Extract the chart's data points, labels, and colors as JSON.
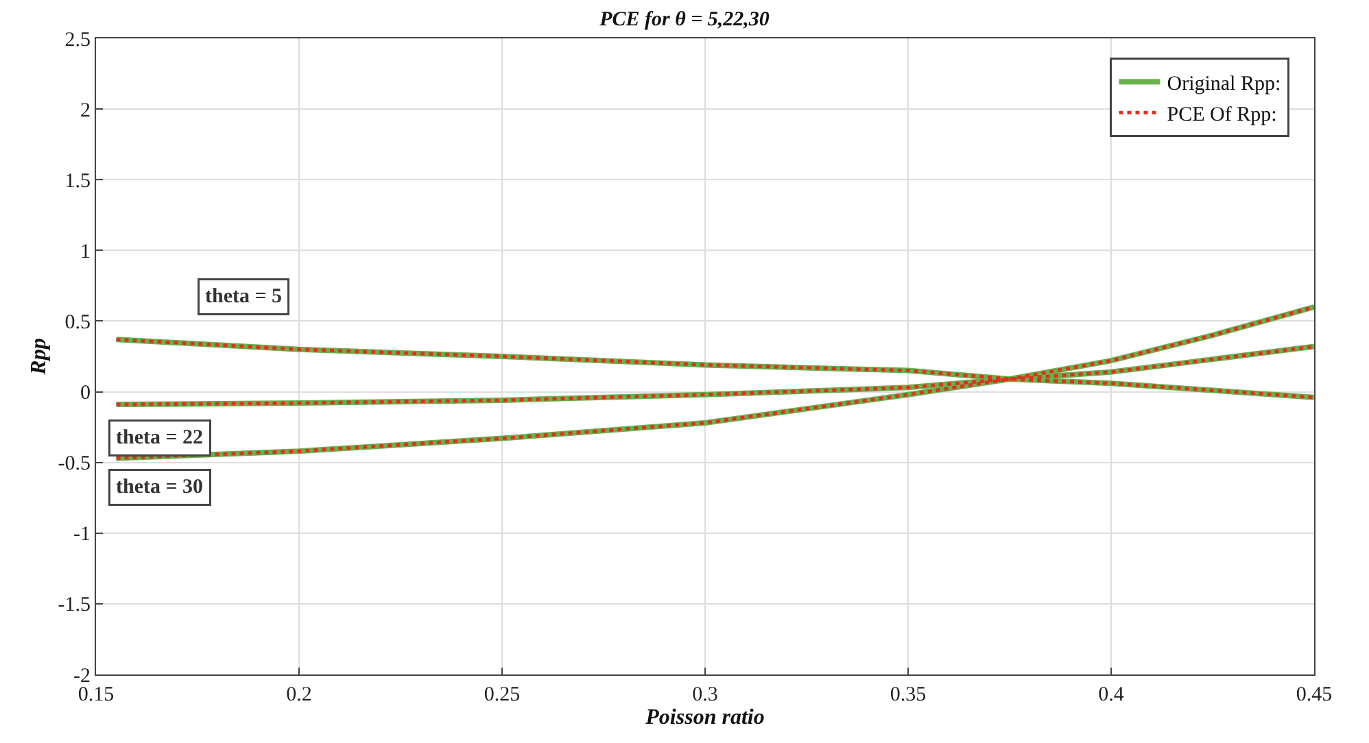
{
  "chart_data": {
    "type": "line",
    "title": "PCE for θ = 5,22,30",
    "xlabel": "Poisson ratio",
    "ylabel": "Rpp",
    "x": [
      0.155,
      0.2,
      0.25,
      0.3,
      0.35,
      0.375,
      0.4,
      0.425,
      0.45
    ],
    "series": [
      {
        "name": "Original Rpp:",
        "color": "#6ab04c",
        "line_style": "solid",
        "values": [
          0.37,
          0.3,
          0.25,
          0.19,
          0.15,
          0.09,
          0.06,
          0.01,
          -0.04
        ]
      },
      {
        "color": "#6ab04c",
        "line_style": "solid",
        "values": [
          -0.09,
          -0.08,
          -0.06,
          -0.02,
          0.03,
          0.09,
          0.14,
          0.23,
          0.32
        ]
      },
      {
        "color": "#6ab04c",
        "line_style": "solid",
        "values": [
          -0.47,
          -0.42,
          -0.33,
          -0.22,
          -0.02,
          0.09,
          0.22,
          0.4,
          0.6
        ]
      },
      {
        "name": "PCE Of Rpp:",
        "color": "#e0301e",
        "line_style": "dotted",
        "values": [
          0.37,
          0.3,
          0.25,
          0.19,
          0.15,
          0.09,
          0.06,
          0.01,
          -0.04
        ]
      },
      {
        "color": "#e0301e",
        "line_style": "dotted",
        "values": [
          -0.09,
          -0.08,
          -0.06,
          -0.02,
          0.03,
          0.09,
          0.14,
          0.23,
          0.32
        ]
      },
      {
        "color": "#e0301e",
        "line_style": "dotted",
        "values": [
          -0.47,
          -0.42,
          -0.33,
          -0.22,
          -0.02,
          0.09,
          0.22,
          0.4,
          0.6
        ]
      }
    ],
    "annotations": [
      "theta = 5",
      "theta = 22",
      "theta = 30"
    ],
    "xlim": [
      0.15,
      0.45
    ],
    "xticks": [
      0.15,
      0.2,
      0.25,
      0.3,
      0.35,
      0.4,
      0.45
    ],
    "ylim": [
      -2,
      2.5
    ],
    "yticks": [
      -2,
      -1.5,
      -1,
      -0.5,
      0,
      0.5,
      1,
      1.5,
      2,
      2.5
    ],
    "grid": true,
    "legend": "top right",
    "marker": "none"
  }
}
